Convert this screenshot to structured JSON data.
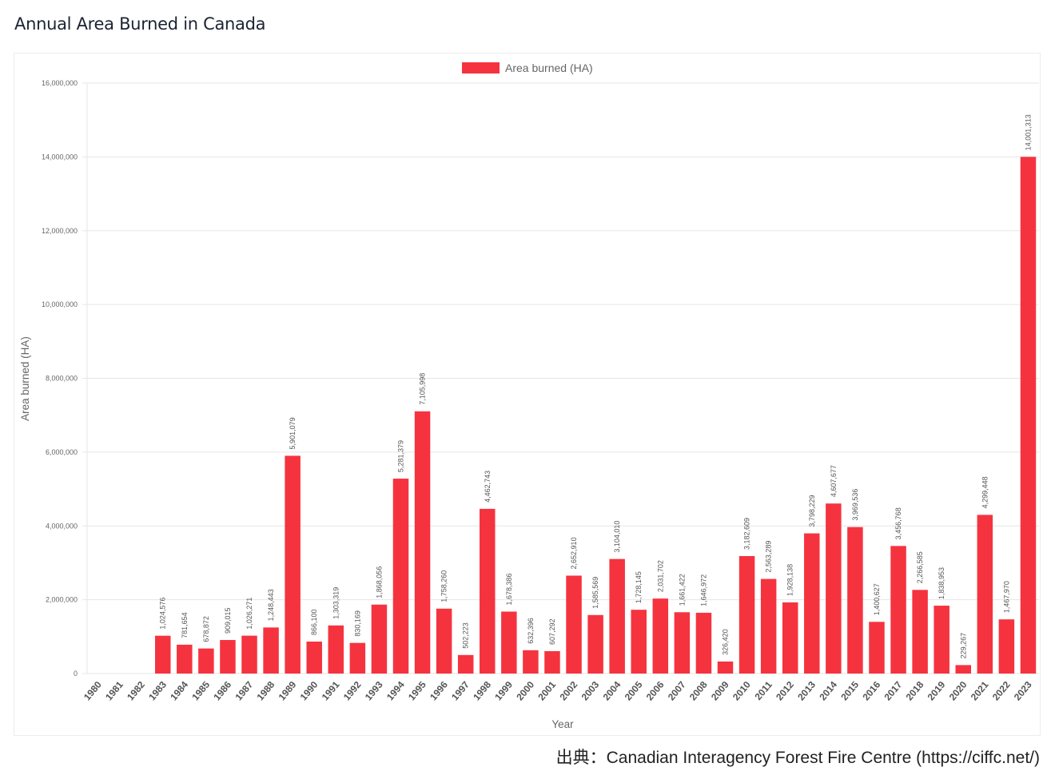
{
  "page": {
    "title": "Annual Area Burned in Canada",
    "source": "出典：Canadian Interagency Forest Fire Centre (https://ciffc.net/)"
  },
  "colors": {
    "bar": "#f5333f",
    "grid": "#e6e6e6",
    "text": "#666666"
  },
  "chart_data": {
    "type": "bar",
    "title": "Annual Area Burned in Canada",
    "xlabel": "Year",
    "ylabel": "Area burned (HA)",
    "legend": {
      "position": "top-center",
      "entries": [
        "Area burned (HA)"
      ]
    },
    "grid": true,
    "ylim": [
      0,
      16000000
    ],
    "yticks": [
      0,
      2000000,
      4000000,
      6000000,
      8000000,
      10000000,
      12000000,
      14000000,
      16000000
    ],
    "ytick_labels": [
      "0",
      "2,000,000",
      "4,000,000",
      "6,000,000",
      "8,000,000",
      "10,000,000",
      "12,000,000",
      "14,000,000",
      "16,000,000"
    ],
    "categories": [
      "1980",
      "1981",
      "1982",
      "1983",
      "1984",
      "1985",
      "1986",
      "1987",
      "1988",
      "1989",
      "1990",
      "1991",
      "1992",
      "1993",
      "1994",
      "1995",
      "1996",
      "1997",
      "1998",
      "1999",
      "2000",
      "2001",
      "2002",
      "2003",
      "2004",
      "2005",
      "2006",
      "2007",
      "2008",
      "2009",
      "2010",
      "2011",
      "2012",
      "2013",
      "2014",
      "2015",
      "2016",
      "2017",
      "2018",
      "2019",
      "2020",
      "2021",
      "2022",
      "2023"
    ],
    "series": [
      {
        "name": "Area burned (HA)",
        "values": [
          null,
          null,
          null,
          1024576,
          781654,
          678872,
          909015,
          1026271,
          1248443,
          5901079,
          866100,
          1303319,
          830169,
          1868056,
          5281379,
          7105998,
          1758260,
          502223,
          4462743,
          1678386,
          632396,
          607292,
          2652910,
          1585569,
          3104010,
          1728145,
          2031702,
          1661422,
          1646972,
          326420,
          3182609,
          2563289,
          1928138,
          3798229,
          4607677,
          3969536,
          1400627,
          3456768,
          2266585,
          1838953,
          229267,
          4299448,
          1467970,
          14001313
        ],
        "labels": [
          "",
          "",
          "",
          "1,024,576",
          "781,654",
          "678,872",
          "909,015",
          "1,026,271",
          "1,248,443",
          "5,901,079",
          "866,100",
          "1,303,319",
          "830,169",
          "1,868,056",
          "5,281,379",
          "7,105,998",
          "1,758,260",
          "502,223",
          "4,462,743",
          "1,678,386",
          "632,396",
          "607,292",
          "2,652,910",
          "1,585,569",
          "3,104,010",
          "1,728,145",
          "2,031,702",
          "1,661,422",
          "1,646,972",
          "326,420",
          "3,182,609",
          "2,563,289",
          "1,928,138",
          "3,798,229",
          "4,607,677",
          "3,969,536",
          "1,400,627",
          "3,456,768",
          "2,266,585",
          "1,838,953",
          "229,267",
          "4,299,448",
          "1,467,970",
          "14,001,313"
        ]
      }
    ]
  }
}
